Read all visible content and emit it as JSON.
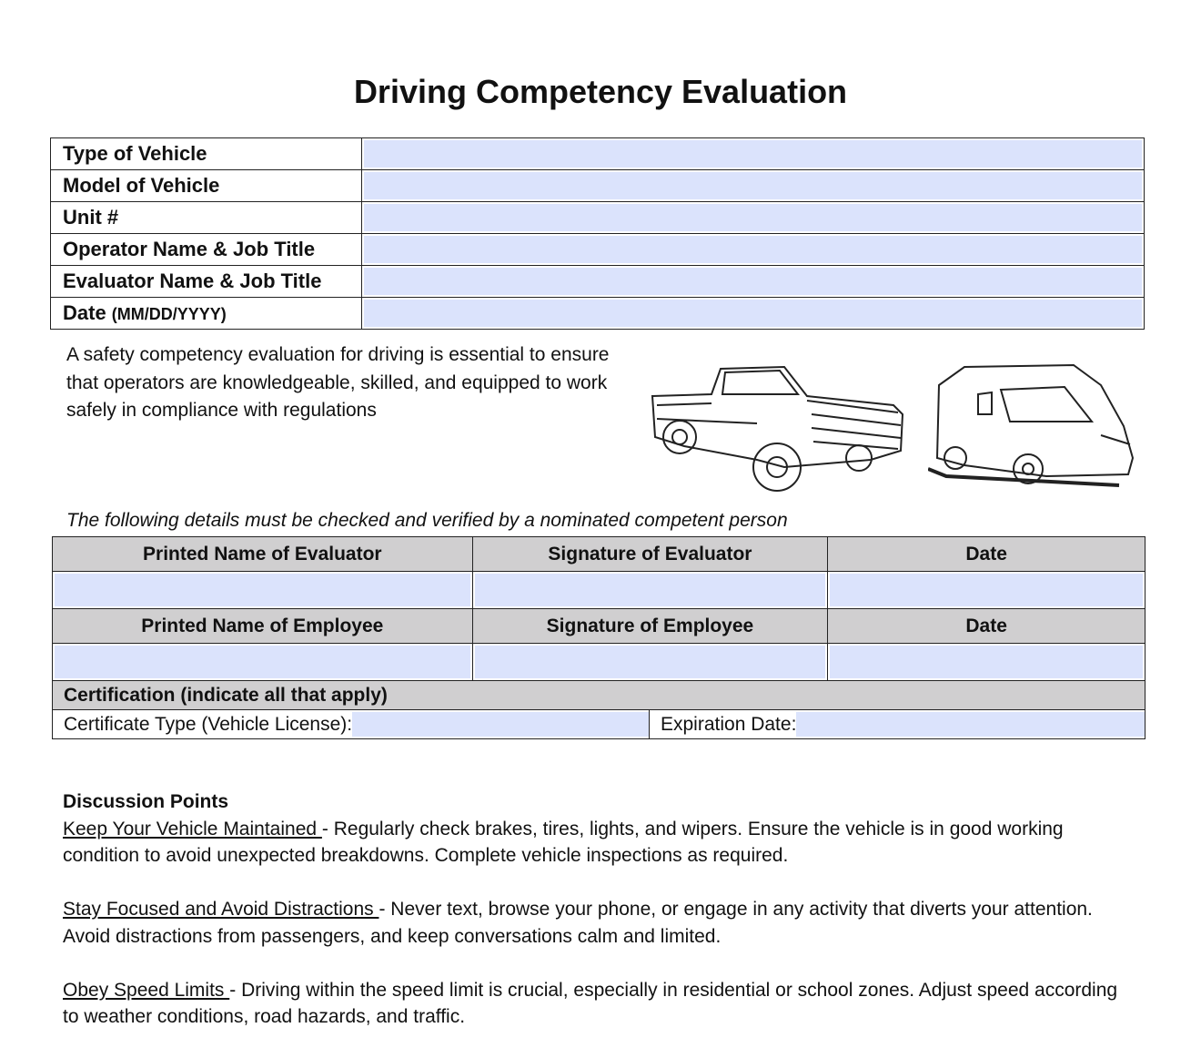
{
  "title": "Driving Competency Evaluation",
  "info_rows": [
    {
      "label": "Type of Vehicle",
      "suffix": "",
      "value": ""
    },
    {
      "label": "Model of Vehicle",
      "suffix": "",
      "value": ""
    },
    {
      "label": "Unit #",
      "suffix": "",
      "value": ""
    },
    {
      "label": "Operator Name & Job Title",
      "suffix": "",
      "value": ""
    },
    {
      "label": "Evaluator Name & Job Title",
      "suffix": "",
      "value": ""
    },
    {
      "label": "Date ",
      "suffix": "(MM/DD/YYYY)",
      "value": ""
    }
  ],
  "intro": "A safety competency evaluation for driving is essential to ensure that operators are knowledgeable, skilled, and equipped to work safely in compliance with regulations",
  "images": {
    "truck": "pickup-truck-sketch",
    "van": "van-sketch"
  },
  "verify_note": "The following details must be checked and verified by a nominated competent person",
  "sign_table": {
    "evaluator_headers": [
      "Printed Name of Evaluator",
      "Signature of Evaluator",
      "Date"
    ],
    "employee_headers": [
      "Printed Name of Employee",
      "Signature of Employee",
      "Date"
    ],
    "certification_header": "Certification (indicate all that apply)",
    "certificate_type_label": "Certificate Type (Vehicle License):",
    "expiration_label": "Expiration Date:"
  },
  "discussion": {
    "heading": "Discussion Points",
    "points": [
      {
        "title": "Keep Your Vehicle Maintained ",
        "text": "- Regularly check brakes, tires, lights, and wipers. Ensure the vehicle is in good working condition to avoid unexpected breakdowns. Complete vehicle inspections as required."
      },
      {
        "title": "Stay Focused and Avoid Distractions ",
        "text": "- Never text, browse your phone, or engage in any activity that diverts your attention. Avoid distractions from passengers, and keep conversations calm and limited."
      },
      {
        "title": "Obey Speed Limits ",
        "text": "- Driving within the speed limit is crucial, especially in residential or school zones. Adjust speed according to weather conditions, road hazards, and traffic."
      }
    ]
  },
  "colors": {
    "field": "#dbe3fc",
    "header": "#d0cfd0"
  }
}
